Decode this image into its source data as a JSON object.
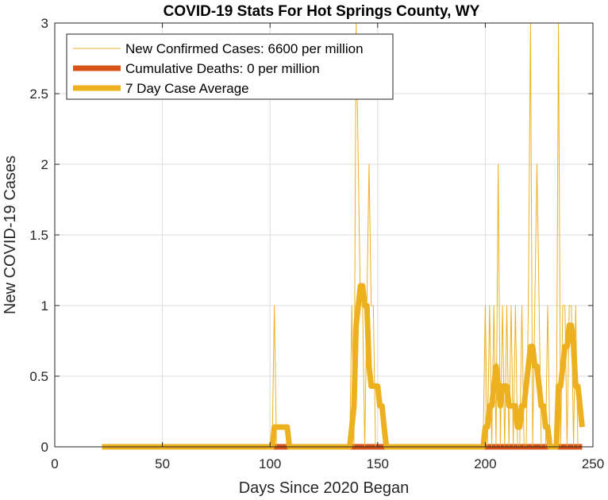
{
  "chart_data": {
    "type": "line",
    "title": "COVID-19 Stats For Hot Springs County, WY",
    "xlabel": "Days Since 2020 Began",
    "ylabel": "New COVID-19 Cases",
    "xlim": [
      0,
      250
    ],
    "ylim": [
      0,
      3
    ],
    "xticks": [
      0,
      50,
      100,
      150,
      200,
      250
    ],
    "yticks": [
      0,
      0.5,
      1,
      1.5,
      2,
      2.5,
      3
    ],
    "xtick_labels": [
      "0",
      "50",
      "100",
      "150",
      "200",
      "250"
    ],
    "ytick_labels": [
      "0",
      "0.5",
      "1",
      "1.5",
      "2",
      "2.5",
      "3"
    ],
    "grid": true,
    "legend_position": "top-left",
    "series": [
      {
        "name": "New Confirmed Cases: 6600 per million",
        "color": "#EDB120",
        "x": [
          22,
          101,
          102,
          103,
          137,
          138,
          139,
          140,
          141,
          142,
          143,
          144,
          145,
          146,
          147,
          148,
          149,
          150,
          151,
          152,
          153,
          154,
          155,
          156,
          199,
          200,
          201,
          202,
          203,
          204,
          205,
          206,
          207,
          208,
          209,
          210,
          211,
          212,
          213,
          214,
          215,
          216,
          217,
          218,
          219,
          220,
          221,
          222,
          223,
          224,
          225,
          226,
          227,
          228,
          229,
          230,
          231,
          232,
          233,
          234,
          235,
          236,
          237,
          238,
          239,
          240,
          241,
          242,
          243,
          244,
          245
        ],
        "y": [
          0,
          0,
          1,
          0,
          0,
          1,
          0,
          3,
          2,
          1,
          1,
          0,
          1,
          2,
          1,
          1,
          0,
          0,
          0,
          0,
          0,
          0,
          0,
          0,
          0,
          1,
          0,
          1,
          0,
          1,
          0,
          2,
          0,
          1,
          0,
          1,
          0,
          1,
          0,
          1,
          0,
          0,
          1,
          0,
          0,
          1,
          3,
          0,
          1,
          2,
          1,
          0,
          0,
          0,
          1,
          0,
          0,
          0,
          0,
          3,
          0,
          1,
          1,
          0,
          1,
          1,
          0,
          1,
          0,
          0,
          0
        ]
      },
      {
        "name": "Cumulative Deaths: 0 per million",
        "color": "#D95319",
        "x": [
          22,
          245
        ],
        "y": [
          0,
          0
        ]
      },
      {
        "name": "7 Day Case Average",
        "color": "#EDB120",
        "x": [
          22,
          101,
          102,
          108,
          109,
          137,
          138,
          139,
          140,
          141,
          142,
          143,
          144,
          145,
          146,
          147,
          148,
          149,
          150,
          151,
          152,
          153,
          154,
          155,
          156,
          199,
          200,
          201,
          202,
          203,
          204,
          205,
          206,
          207,
          208,
          209,
          210,
          211,
          212,
          213,
          214,
          215,
          216,
          217,
          218,
          219,
          220,
          221,
          222,
          223,
          224,
          225,
          226,
          227,
          228,
          229,
          230,
          231,
          232,
          233,
          234,
          235,
          236,
          237,
          238,
          239,
          240,
          241,
          242,
          243,
          244,
          245
        ],
        "y": [
          0,
          0,
          0.14,
          0.14,
          0,
          0,
          0.14,
          0.29,
          0.86,
          1.0,
          1.14,
          1.14,
          1.0,
          1.0,
          0.57,
          0.43,
          0.43,
          0.43,
          0.43,
          0.29,
          0.29,
          0.14,
          0,
          0,
          0,
          0,
          0.14,
          0.14,
          0.29,
          0.29,
          0.43,
          0.57,
          0.43,
          0.29,
          0.43,
          0.43,
          0.43,
          0.29,
          0.29,
          0.29,
          0.29,
          0.14,
          0.14,
          0.29,
          0.29,
          0.43,
          0.57,
          0.71,
          0.71,
          0.57,
          0.57,
          0.43,
          0.29,
          0.29,
          0.14,
          0.14,
          0,
          0,
          0,
          0,
          0.43,
          0.43,
          0.57,
          0.71,
          0.71,
          0.86,
          0.86,
          0.71,
          0.43,
          0.43,
          0.29,
          0.14
        ]
      }
    ]
  }
}
